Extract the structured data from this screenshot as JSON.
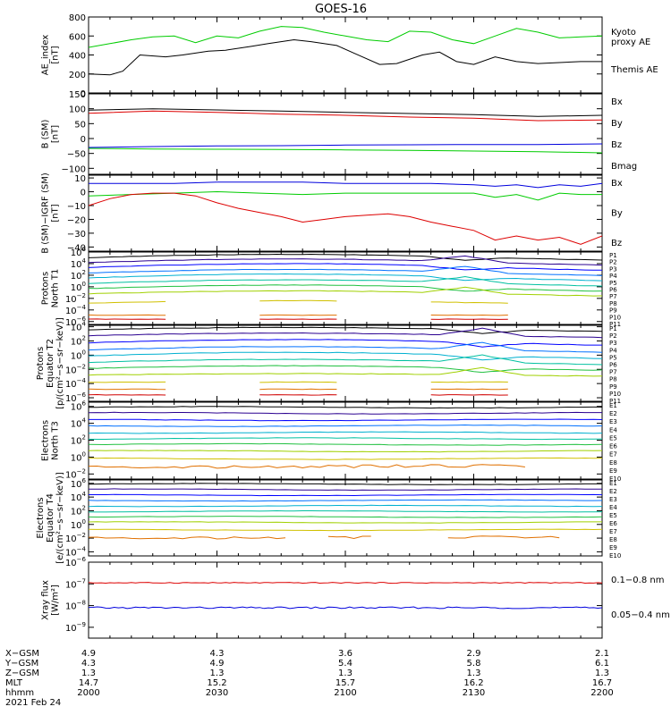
{
  "title": "GOES-16",
  "colors": {
    "black": "#000000",
    "blue": "#0000dd",
    "green": "#00cc00",
    "red": "#dd0000",
    "p": [
      "#000000",
      "#2a0090",
      "#0000ff",
      "#0070ff",
      "#00b0d0",
      "#00c0a0",
      "#20c040",
      "#a0d000",
      "#d0c000",
      "#e07000",
      "#d00000"
    ]
  },
  "panels": [
    {
      "id": "ae",
      "ylabel": [
        "AE_index",
        "[nT]"
      ],
      "scale": "linear",
      "ylim": [
        0,
        800
      ],
      "ticks": [
        {
          "v": 800,
          "l": "800"
        },
        {
          "v": 600,
          "l": "600"
        },
        {
          "v": 400,
          "l": "400"
        },
        {
          "v": 200,
          "l": "200"
        },
        {
          "v": 0,
          "l": "0"
        }
      ],
      "legend": [
        {
          "text": "Kyoto",
          "color": "#00cc00"
        },
        {
          "text": "proxy AE",
          "color": "#00cc00"
        },
        {
          "text": "Themis AE",
          "color": "#000000"
        }
      ]
    },
    {
      "id": "b",
      "ylabel": [
        "B (SM)",
        "[nT]"
      ],
      "scale": "linear",
      "ylim": [
        -120,
        150
      ],
      "ticks": [
        {
          "v": 150,
          "l": "150"
        },
        {
          "v": 100,
          "l": "100"
        },
        {
          "v": 50,
          "l": "50"
        },
        {
          "v": 0,
          "l": "0"
        },
        {
          "v": -50,
          "l": "−50"
        },
        {
          "v": -100,
          "l": "−100"
        }
      ],
      "legend": [
        {
          "text": "Bx",
          "color": "#0000dd"
        },
        {
          "text": "By",
          "color": "#00cc00"
        },
        {
          "text": "Bz",
          "color": "#dd0000"
        },
        {
          "text": "Bmag",
          "color": "#000000"
        }
      ]
    },
    {
      "id": "bi",
      "ylabel": [
        "B (SM)−IGRF (SM)",
        "[nT]"
      ],
      "scale": "linear",
      "ylim": [
        -43,
        12
      ],
      "ticks": [
        {
          "v": 10,
          "l": "10"
        },
        {
          "v": 0,
          "l": "0"
        },
        {
          "v": -10,
          "l": "−10"
        },
        {
          "v": -20,
          "l": "−20"
        },
        {
          "v": -30,
          "l": "−30"
        },
        {
          "v": -40,
          "l": "−40"
        }
      ],
      "legend": [
        {
          "text": "Bx",
          "color": "#0000dd"
        },
        {
          "text": "By",
          "color": "#00cc00"
        },
        {
          "text": "Bz",
          "color": "#dd0000"
        }
      ]
    },
    {
      "id": "pn",
      "ylabel": [
        "Protons",
        "North T1"
      ],
      "scale": "log",
      "ylim": [
        -6.5,
        6
      ],
      "ticks": [
        {
          "e": 6
        },
        {
          "e": 4
        },
        {
          "e": 2
        },
        {
          "e": 0
        },
        {
          "e": -2
        },
        {
          "e": -4
        },
        {
          "e": -6
        }
      ],
      "legend_labels": [
        "P1",
        "P2",
        "P3",
        "P4",
        "P5",
        "P6",
        "P7",
        "P8",
        "P9",
        "P10",
        "P11"
      ]
    },
    {
      "id": "pe",
      "ylabel": [
        "Protons",
        "Equator T2",
        "[p/(cm²−s−sr−keV)]"
      ],
      "scale": "log",
      "ylim": [
        -6.5,
        4.2
      ],
      "ticks": [
        {
          "e": 4
        },
        {
          "e": 2
        },
        {
          "e": 0
        },
        {
          "e": -2
        },
        {
          "e": -4
        },
        {
          "e": -6
        }
      ],
      "legend_labels": [
        "P1",
        "P2",
        "P3",
        "P4",
        "P5",
        "P6",
        "P7",
        "P8",
        "P9",
        "P10",
        "P11"
      ]
    },
    {
      "id": "en",
      "ylabel": [
        "Electrons",
        "North T3"
      ],
      "scale": "log",
      "ylim": [
        -2.6,
        6.5
      ],
      "ticks": [
        {
          "e": 6
        },
        {
          "e": 4
        },
        {
          "e": 2
        },
        {
          "e": 0
        },
        {
          "e": -2
        }
      ],
      "legend_labels": [
        "E1",
        "E2",
        "E3",
        "E4",
        "E5",
        "E6",
        "E7",
        "E8",
        "E9",
        "E10"
      ]
    },
    {
      "id": "ee",
      "ylabel": [
        "Electrons",
        "Equator T4",
        "[e/(cm²−s−sr−keV)]"
      ],
      "scale": "log",
      "ylim": [
        -4.6,
        6.5
      ],
      "ticks": [
        {
          "e": 6
        },
        {
          "e": 4
        },
        {
          "e": 2
        },
        {
          "e": 0
        },
        {
          "e": -2
        },
        {
          "e": -4
        }
      ],
      "legend_labels": [
        "E1",
        "E2",
        "E3",
        "E4",
        "E5",
        "E6",
        "E7",
        "E8",
        "E9",
        "E10"
      ]
    },
    {
      "id": "xr",
      "ylabel": [
        "Xray flux",
        "[W/m²]"
      ],
      "scale": "log",
      "ylim": [
        -9.5,
        -6
      ],
      "ticks": [
        {
          "e": -6
        },
        {
          "e": -7
        },
        {
          "e": -8
        },
        {
          "e": -9
        }
      ],
      "legend": [
        {
          "text": "0.1−0.8 nm",
          "color": "#dd0000"
        },
        {
          "text": "0.05−0.4 nm",
          "color": "#0000dd"
        }
      ]
    }
  ],
  "ephemeris": {
    "labels": [
      "X−GSM",
      "Y−GSM",
      "Z−GSM",
      "MLT",
      "hhmm",
      "2021 Feb 24"
    ],
    "columns": [
      {
        "t": 0,
        "x": "4.9",
        "y": "4.3",
        "z": "1.3",
        "mlt": "14.7",
        "hhmm": "2000"
      },
      {
        "t": 30,
        "x": "4.3",
        "y": "4.9",
        "z": "1.3",
        "mlt": "15.2",
        "hhmm": "2030"
      },
      {
        "t": 60,
        "x": "3.6",
        "y": "5.4",
        "z": "1.3",
        "mlt": "15.7",
        "hhmm": "2100"
      },
      {
        "t": 90,
        "x": "2.9",
        "y": "5.8",
        "z": "1.3",
        "mlt": "16.2",
        "hhmm": "2130"
      },
      {
        "t": 120,
        "x": "2.1",
        "y": "6.1",
        "z": "1.3",
        "mlt": "16.7",
        "hhmm": "2200"
      }
    ]
  },
  "chart_data": {
    "type": "line",
    "title": "GOES-16",
    "x_units": "minutes after 2000 UT",
    "xlim": [
      0,
      120
    ],
    "panels": {
      "ae": {
        "series": [
          {
            "name": "Kyoto proxy AE",
            "color": "#00cc00",
            "x": [
              0,
              5,
              10,
              15,
              20,
              25,
              30,
              35,
              40,
              45,
              50,
              55,
              60,
              65,
              70,
              75,
              80,
              85,
              90,
              95,
              100,
              105,
              110,
              115,
              120
            ],
            "y": [
              480,
              520,
              560,
              590,
              600,
              530,
              600,
              580,
              650,
              700,
              690,
              640,
              600,
              560,
              540,
              650,
              640,
              560,
              520,
              600,
              680,
              640,
              580,
              590,
              600
            ]
          },
          {
            "name": "Themis AE",
            "color": "#000000",
            "x": [
              0,
              5,
              8,
              12,
              18,
              22,
              28,
              32,
              38,
              42,
              48,
              52,
              58,
              62,
              68,
              72,
              78,
              82,
              86,
              90,
              95,
              100,
              105,
              110,
              115,
              120
            ],
            "y": [
              200,
              190,
              230,
              400,
              380,
              400,
              440,
              450,
              490,
              520,
              560,
              540,
              500,
              420,
              300,
              310,
              400,
              430,
              330,
              300,
              380,
              330,
              310,
              320,
              330,
              330
            ]
          }
        ]
      },
      "b": {
        "series": [
          {
            "name": "Bmag",
            "color": "#000000",
            "x": [
              0,
              15,
              30,
              45,
              60,
              75,
              90,
              105,
              120
            ],
            "y": [
              95,
              100,
              96,
              92,
              88,
              84,
              80,
              74,
              78
            ]
          },
          {
            "name": "Bz",
            "color": "#dd0000",
            "x": [
              0,
              15,
              30,
              45,
              60,
              75,
              90,
              105,
              120
            ],
            "y": [
              85,
              92,
              88,
              82,
              78,
              72,
              68,
              60,
              62
            ]
          },
          {
            "name": "Bx",
            "color": "#0000dd",
            "x": [
              0,
              15,
              30,
              45,
              60,
              75,
              90,
              105,
              120
            ],
            "y": [
              -30,
              -27,
              -25,
              -24,
              -22,
              -21,
              -20,
              -20,
              -18
            ]
          },
          {
            "name": "By",
            "color": "#00cc00",
            "x": [
              0,
              15,
              30,
              45,
              60,
              75,
              90,
              105,
              120
            ],
            "y": [
              -33,
              -35,
              -36,
              -37,
              -38,
              -40,
              -42,
              -44,
              -48
            ]
          }
        ]
      },
      "bi": {
        "series": [
          {
            "name": "Bx",
            "color": "#0000dd",
            "x": [
              0,
              10,
              20,
              30,
              40,
              50,
              60,
              70,
              80,
              90,
              95,
              100,
              105,
              110,
              115,
              120
            ],
            "y": [
              6,
              6,
              6,
              7,
              7,
              7,
              6,
              6,
              6,
              5,
              4,
              5,
              3,
              5,
              4,
              6
            ]
          },
          {
            "name": "By",
            "color": "#00cc00",
            "x": [
              0,
              10,
              20,
              30,
              40,
              50,
              60,
              70,
              80,
              90,
              95,
              100,
              105,
              110,
              115,
              120
            ],
            "y": [
              -3,
              -2,
              -1,
              0,
              -1,
              -2,
              -1,
              -1,
              -1,
              -1,
              -4,
              -2,
              -6,
              -1,
              -2,
              -2
            ]
          },
          {
            "name": "Bz",
            "color": "#dd0000",
            "x": [
              0,
              5,
              10,
              15,
              20,
              25,
              30,
              35,
              40,
              45,
              50,
              55,
              60,
              65,
              70,
              75,
              80,
              85,
              90,
              95,
              100,
              105,
              110,
              115,
              120
            ],
            "y": [
              -10,
              -5,
              -2,
              -1,
              -1,
              -3,
              -8,
              -12,
              -15,
              -18,
              -22,
              -20,
              -18,
              -17,
              -16,
              -18,
              -22,
              -25,
              -28,
              -35,
              -32,
              -35,
              -33,
              -38,
              -32
            ]
          }
        ]
      },
      "pn": {
        "levels": [
          [
            4.5,
            5.6
          ],
          [
            3.6,
            4.8
          ],
          [
            2.7,
            4.0
          ],
          [
            1.8,
            3.0
          ],
          [
            0.9,
            2.2
          ],
          [
            0.0,
            1.2
          ],
          [
            -0.9,
            0.3
          ],
          [
            -1.7,
            -0.7
          ],
          [
            -3.2,
            -2.4
          ],
          [
            -4.9,
            -4.9
          ],
          [
            -5.6,
            -5.6
          ]
        ],
        "bump_t": 88
      },
      "pe": {
        "levels": [
          [
            3.3,
            3.9
          ],
          [
            2.4,
            3.1
          ],
          [
            1.3,
            2.2
          ],
          [
            0.3,
            1.2
          ],
          [
            -0.6,
            0.4
          ],
          [
            -1.4,
            -0.6
          ],
          [
            -2.2,
            -1.5
          ],
          [
            -3.0,
            -2.6
          ],
          [
            -3.8,
            -3.8
          ],
          [
            -4.8,
            -4.8
          ],
          [
            -5.6,
            -5.6
          ]
        ],
        "bump_t": 92
      },
      "en": {
        "levels": [
          5.9,
          5.2,
          4.4,
          3.7,
          2.9,
          2.2,
          1.5,
          0.7,
          -0.2,
          -1.1
        ],
        "gap_after": [
          95,
          100
        ]
      },
      "ee": {
        "levels": [
          5.9,
          5.1,
          4.3,
          3.5,
          2.7,
          1.9,
          1.1,
          0.3,
          -0.8,
          -1.9
        ]
      },
      "xr": {
        "series": [
          {
            "name": "0.1−0.8 nm",
            "color": "#dd0000",
            "level": -6.95
          },
          {
            "name": "0.05−0.4 nm",
            "color": "#0000dd",
            "level": -8.1
          }
        ]
      }
    }
  }
}
